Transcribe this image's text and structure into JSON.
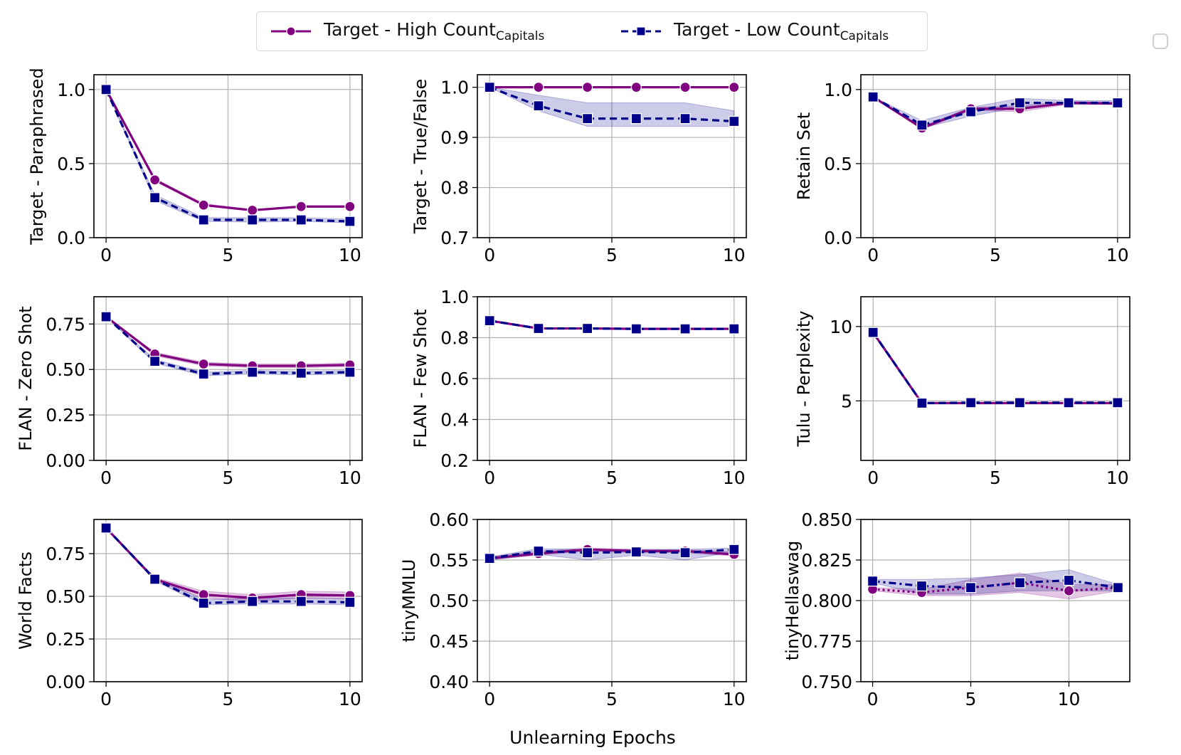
{
  "legend": {
    "items": [
      {
        "label": "Target - High Count",
        "subscript": "Capitals",
        "color": "#800080",
        "marker": "circle",
        "line": "solid"
      },
      {
        "label": "Target - Low Count",
        "subscript": "Capitals",
        "color": "#00008B",
        "marker": "square",
        "line": "dashed"
      }
    ]
  },
  "figure": {
    "xlabel": "Unlearning Epochs"
  },
  "chart_data": [
    {
      "type": "line",
      "ylabel": "Target - Paraphrased",
      "x": [
        0,
        2,
        4,
        6,
        8,
        10
      ],
      "xlim": [
        -0.5,
        10.5
      ],
      "xticks": [
        "0",
        "5",
        "10"
      ],
      "xtick_values": [
        0,
        5,
        10
      ],
      "ylim": [
        0,
        1.1
      ],
      "yticks": [
        "0.0",
        "0.5",
        "1.0"
      ],
      "ytick_values": [
        0,
        0.5,
        1.0
      ],
      "grid": true,
      "series": [
        {
          "name": "Target - High Count Capitals",
          "values": [
            1.0,
            0.39,
            0.22,
            0.185,
            0.21,
            0.21
          ],
          "band": [
            [
              1.0,
              1.0
            ],
            [
              0.38,
              0.4
            ],
            [
              0.215,
              0.23
            ],
            [
              0.18,
              0.19
            ],
            [
              0.205,
              0.215
            ],
            [
              0.205,
              0.215
            ]
          ]
        },
        {
          "name": "Target - Low Count Capitals",
          "values": [
            1.0,
            0.27,
            0.12,
            0.12,
            0.12,
            0.11
          ],
          "band": [
            [
              1.0,
              1.0
            ],
            [
              0.25,
              0.29
            ],
            [
              0.11,
              0.135
            ],
            [
              0.105,
              0.135
            ],
            [
              0.11,
              0.135
            ],
            [
              0.1,
              0.125
            ]
          ]
        }
      ]
    },
    {
      "type": "line",
      "ylabel": "Target - True/False",
      "x": [
        0,
        2,
        4,
        6,
        8,
        10
      ],
      "xlim": [
        -0.5,
        10.5
      ],
      "xticks": [
        "0",
        "5",
        "10"
      ],
      "xtick_values": [
        0,
        5,
        10
      ],
      "ylim": [
        0.7,
        1.025
      ],
      "yticks": [
        "0.7",
        "0.8",
        "0.9",
        "1.0"
      ],
      "ytick_values": [
        0.7,
        0.8,
        0.9,
        1.0
      ],
      "grid": true,
      "series": [
        {
          "name": "Target - High Count Capitals",
          "values": [
            1.0,
            1.0,
            1.0,
            1.0,
            1.0,
            1.0
          ],
          "band": null
        },
        {
          "name": "Target - Low Count Capitals",
          "values": [
            1.0,
            0.963,
            0.9375,
            0.9375,
            0.9375,
            0.932
          ],
          "band": [
            [
              1.0,
              1.0
            ],
            [
              0.953,
              0.984
            ],
            [
              0.922,
              0.969
            ],
            [
              0.922,
              0.969
            ],
            [
              0.922,
              0.969
            ],
            [
              0.922,
              0.953
            ]
          ]
        }
      ]
    },
    {
      "type": "line",
      "ylabel": "Retain Set",
      "x": [
        0,
        2,
        4,
        6,
        8,
        10
      ],
      "xlim": [
        -0.5,
        10.5
      ],
      "xticks": [
        "0",
        "5",
        "10"
      ],
      "xtick_values": [
        0,
        5,
        10
      ],
      "ylim": [
        0,
        1.1
      ],
      "yticks": [
        "0.0",
        "0.5",
        "1.0"
      ],
      "ytick_values": [
        0,
        0.5,
        1.0
      ],
      "grid": true,
      "series": [
        {
          "name": "Target - High Count Capitals",
          "values": [
            0.95,
            0.74,
            0.87,
            0.87,
            0.91,
            0.905
          ],
          "band": [
            [
              0.95,
              0.95
            ],
            [
              0.73,
              0.75
            ],
            [
              0.86,
              0.88
            ],
            [
              0.85,
              0.89
            ],
            [
              0.9,
              0.92
            ],
            [
              0.9,
              0.915
            ]
          ]
        },
        {
          "name": "Target - Low Count Capitals",
          "values": [
            0.95,
            0.76,
            0.85,
            0.91,
            0.91,
            0.91
          ],
          "band": [
            [
              0.95,
              0.95
            ],
            [
              0.74,
              0.79
            ],
            [
              0.82,
              0.88
            ],
            [
              0.88,
              0.94
            ],
            [
              0.9,
              0.925
            ],
            [
              0.9,
              0.925
            ]
          ]
        }
      ]
    },
    {
      "type": "line",
      "ylabel": "FLAN - Zero Shot",
      "x": [
        0,
        2,
        4,
        6,
        8,
        10
      ],
      "xlim": [
        -0.5,
        10.5
      ],
      "xticks": [
        "0",
        "5",
        "10"
      ],
      "xtick_values": [
        0,
        5,
        10
      ],
      "ylim": [
        0,
        0.9
      ],
      "yticks": [
        "0.00",
        "0.25",
        "0.50",
        "0.75"
      ],
      "ytick_values": [
        0,
        0.25,
        0.5,
        0.75
      ],
      "grid": true,
      "series": [
        {
          "name": "Target - High Count Capitals",
          "values": [
            0.79,
            0.585,
            0.53,
            0.52,
            0.52,
            0.525
          ],
          "band": [
            [
              0.79,
              0.79
            ],
            [
              0.575,
              0.595
            ],
            [
              0.52,
              0.54
            ],
            [
              0.51,
              0.53
            ],
            [
              0.51,
              0.53
            ],
            [
              0.515,
              0.535
            ]
          ]
        },
        {
          "name": "Target - Low Count Capitals",
          "values": [
            0.79,
            0.545,
            0.475,
            0.485,
            0.48,
            0.485
          ],
          "band": [
            [
              0.79,
              0.79
            ],
            [
              0.535,
              0.555
            ],
            [
              0.465,
              0.485
            ],
            [
              0.475,
              0.495
            ],
            [
              0.47,
              0.49
            ],
            [
              0.475,
              0.495
            ]
          ]
        }
      ]
    },
    {
      "type": "line",
      "ylabel": "FLAN - Few Shot",
      "x": [
        0,
        2,
        4,
        6,
        8,
        10
      ],
      "xlim": [
        -0.5,
        10.5
      ],
      "xticks": [
        "0",
        "5",
        "10"
      ],
      "xtick_values": [
        0,
        5,
        10
      ],
      "ylim": [
        0.2,
        1.0
      ],
      "yticks": [
        "0.2",
        "0.4",
        "0.6",
        "0.8",
        "1.0"
      ],
      "ytick_values": [
        0.2,
        0.4,
        0.6,
        0.8,
        1.0
      ],
      "grid": true,
      "series": [
        {
          "name": "Target - High Count Capitals",
          "values": [
            0.883,
            0.845,
            0.845,
            0.843,
            0.843,
            0.843
          ],
          "band": null
        },
        {
          "name": "Target - Low Count Capitals",
          "values": [
            0.883,
            0.845,
            0.845,
            0.843,
            0.843,
            0.843
          ],
          "band": null
        }
      ]
    },
    {
      "type": "line",
      "ylabel": "Tulu - Perplexity",
      "x": [
        0,
        2,
        4,
        6,
        8,
        10
      ],
      "xlim": [
        -0.5,
        10.5
      ],
      "xticks": [
        "0",
        "5",
        "10"
      ],
      "xtick_values": [
        0,
        5,
        10
      ],
      "ylim": [
        1,
        12
      ],
      "yticks": [
        "5",
        "10"
      ],
      "ytick_values": [
        5,
        10
      ],
      "grid": true,
      "series": [
        {
          "name": "Target - High Count Capitals",
          "values": [
            9.6,
            4.85,
            4.85,
            4.85,
            4.85,
            4.85
          ],
          "band": null
        },
        {
          "name": "Target - Low Count Capitals",
          "values": [
            9.6,
            4.85,
            4.88,
            4.88,
            4.88,
            4.88
          ],
          "band": null
        }
      ]
    },
    {
      "type": "line",
      "ylabel": "World Facts",
      "x": [
        0,
        2,
        4,
        6,
        8,
        10
      ],
      "xlim": [
        -0.5,
        10.5
      ],
      "xticks": [
        "0",
        "5",
        "10"
      ],
      "xtick_values": [
        0,
        5,
        10
      ],
      "ylim": [
        0,
        0.95
      ],
      "yticks": [
        "0.00",
        "0.25",
        "0.50",
        "0.75"
      ],
      "ytick_values": [
        0,
        0.25,
        0.5,
        0.75
      ],
      "grid": true,
      "series": [
        {
          "name": "Target - High Count Capitals",
          "values": [
            0.9,
            0.6,
            0.51,
            0.49,
            0.51,
            0.505
          ],
          "band": [
            [
              0.9,
              0.9
            ],
            [
              0.59,
              0.61
            ],
            [
              0.49,
              0.53
            ],
            [
              0.47,
              0.51
            ],
            [
              0.49,
              0.53
            ],
            [
              0.485,
              0.525
            ]
          ]
        },
        {
          "name": "Target - Low Count Capitals",
          "values": [
            0.9,
            0.6,
            0.46,
            0.47,
            0.47,
            0.465
          ],
          "band": [
            [
              0.9,
              0.9
            ],
            [
              0.59,
              0.61
            ],
            [
              0.45,
              0.48
            ],
            [
              0.455,
              0.49
            ],
            [
              0.455,
              0.49
            ],
            [
              0.45,
              0.485
            ]
          ]
        }
      ]
    },
    {
      "type": "line",
      "ylabel": "tinyMMLU",
      "x": [
        0,
        2,
        4,
        6,
        8,
        10
      ],
      "xlim": [
        -0.5,
        10.5
      ],
      "xticks": [
        "0",
        "5",
        "10"
      ],
      "xtick_values": [
        0,
        5,
        10
      ],
      "ylim": [
        0.4,
        0.6
      ],
      "yticks": [
        "0.40",
        "0.45",
        "0.50",
        "0.55",
        "0.60"
      ],
      "ytick_values": [
        0.4,
        0.45,
        0.5,
        0.55,
        0.6
      ],
      "grid": true,
      "series": [
        {
          "name": "Target - High Count Capitals",
          "values": [
            0.552,
            0.558,
            0.563,
            0.561,
            0.561,
            0.557
          ],
          "band": [
            [
              0.55,
              0.554
            ],
            [
              0.556,
              0.561
            ],
            [
              0.561,
              0.565
            ],
            [
              0.559,
              0.563
            ],
            [
              0.559,
              0.563
            ],
            [
              0.555,
              0.56
            ]
          ]
        },
        {
          "name": "Target - Low Count Capitals",
          "values": [
            0.552,
            0.561,
            0.559,
            0.56,
            0.559,
            0.563
          ],
          "band": [
            [
              0.55,
              0.554
            ],
            [
              0.557,
              0.564
            ],
            [
              0.55,
              0.563
            ],
            [
              0.556,
              0.563
            ],
            [
              0.55,
              0.563
            ],
            [
              0.56,
              0.565
            ]
          ]
        }
      ]
    },
    {
      "type": "line",
      "ylabel": "tinyHellaswag",
      "x": [
        0,
        2.5,
        5,
        7.5,
        10,
        12.5
      ],
      "xlim": [
        -0.6,
        13.1
      ],
      "xticks": [
        "0",
        "5",
        "10"
      ],
      "xtick_values": [
        0,
        5,
        10
      ],
      "ylim": [
        0.75,
        0.85
      ],
      "yticks": [
        "0.750",
        "0.775",
        "0.800",
        "0.825",
        "0.850"
      ],
      "ytick_values": [
        0.75,
        0.775,
        0.8,
        0.825,
        0.85
      ],
      "grid": true,
      "series": [
        {
          "name": "Target - High Count Capitals",
          "values": [
            0.807,
            0.805,
            0.808,
            0.811,
            0.806,
            0.808
          ],
          "band": [
            [
              0.806,
              0.808
            ],
            [
              0.803,
              0.807
            ],
            [
              0.803,
              0.813
            ],
            [
              0.805,
              0.817
            ],
            [
              0.801,
              0.81
            ],
            [
              0.806,
              0.81
            ]
          ]
        },
        {
          "name": "Target - Low Count Capitals",
          "values": [
            0.812,
            0.809,
            0.808,
            0.811,
            0.8125,
            0.808
          ],
          "band": [
            [
              0.811,
              0.813
            ],
            [
              0.804,
              0.813
            ],
            [
              0.804,
              0.814
            ],
            [
              0.806,
              0.816
            ],
            [
              0.806,
              0.819
            ],
            [
              0.806,
              0.81
            ]
          ]
        }
      ]
    }
  ]
}
